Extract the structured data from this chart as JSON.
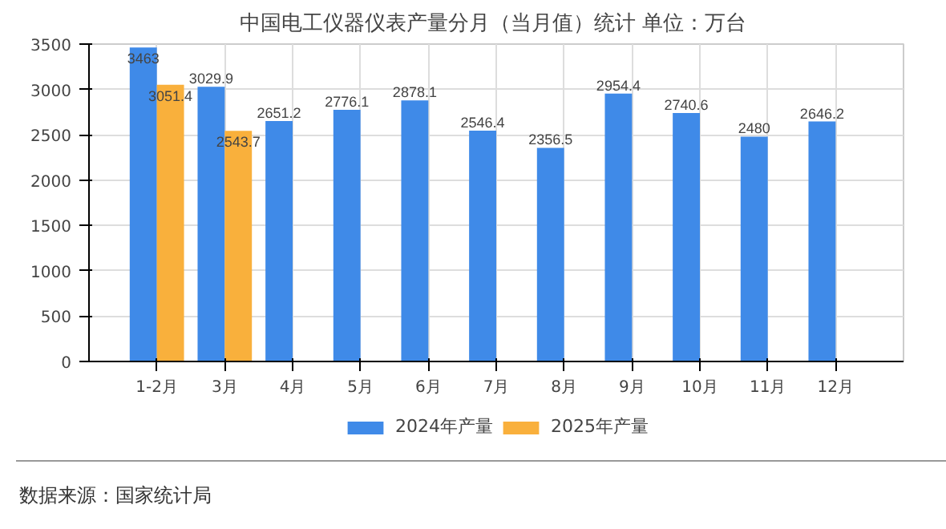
{
  "chart_data": {
    "type": "bar",
    "title": "中国电工仪器仪表产量分月（当月值）统计  单位：万台",
    "categories": [
      "1-2月",
      "3月",
      "4月",
      "5月",
      "6月",
      "7月",
      "8月",
      "9月",
      "10月",
      "11月",
      "12月"
    ],
    "series": [
      {
        "name": "2024年产量",
        "color": "#3f8ae8",
        "values": [
          3463,
          3029.9,
          2651.2,
          2776.1,
          2878.1,
          2546.4,
          2356.5,
          2954.4,
          2740.6,
          2480,
          2646.2
        ]
      },
      {
        "name": "2025年产量",
        "color": "#f9b03c",
        "values": [
          3051.4,
          2543.7,
          null,
          null,
          null,
          null,
          null,
          null,
          null,
          null,
          null
        ]
      }
    ],
    "ylim": [
      0,
      3500
    ],
    "yticks": [
      0,
      500,
      1000,
      1500,
      2000,
      2500,
      3000,
      3500
    ],
    "grid": true,
    "legend": "bottom",
    "data_labels": true,
    "annotations": [
      "数据来源：国家统计局"
    ]
  }
}
